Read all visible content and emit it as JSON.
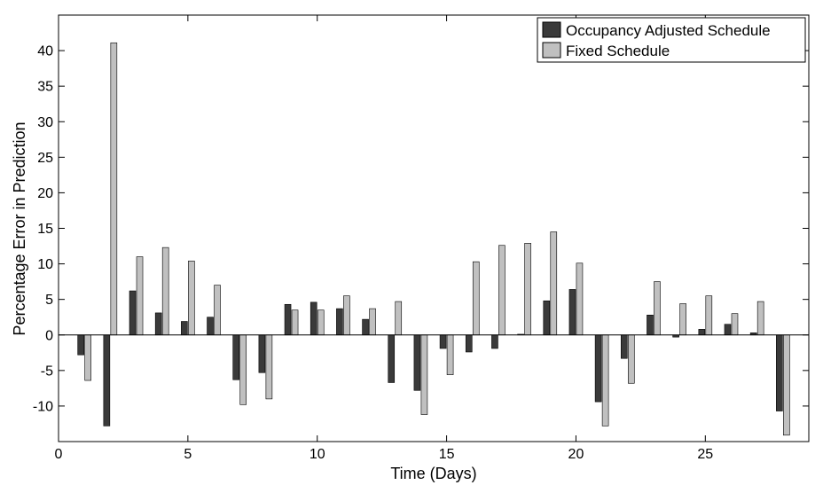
{
  "chart_data": {
    "type": "bar",
    "xlabel": "Time (Days)",
    "ylabel": "Percentage Error in Prediction",
    "xlim": [
      0,
      29
    ],
    "ylim": [
      -15,
      45
    ],
    "xticks": [
      0,
      5,
      10,
      15,
      20,
      25
    ],
    "yticks": [
      -10,
      -5,
      0,
      5,
      10,
      15,
      20,
      25,
      30,
      35,
      40
    ],
    "grid": false,
    "legend_position": "top-right",
    "x": [
      1,
      2,
      3,
      4,
      5,
      6,
      7,
      8,
      9,
      10,
      11,
      12,
      13,
      14,
      15,
      16,
      17,
      18,
      19,
      20,
      21,
      22,
      23,
      24,
      25,
      26,
      27,
      28
    ],
    "series": [
      {
        "name": "Occupancy Adjusted Schedule",
        "color": "#3a3a3a",
        "values": [
          -2.8,
          -12.8,
          6.2,
          3.1,
          1.9,
          2.5,
          -6.3,
          -5.3,
          4.3,
          4.6,
          3.7,
          2.2,
          -6.7,
          -7.8,
          -1.9,
          -2.4,
          -1.9,
          0.1,
          4.8,
          6.4,
          -9.4,
          -3.3,
          2.8,
          -0.3,
          0.8,
          1.5,
          0.3,
          -10.7
        ]
      },
      {
        "name": "Fixed Schedule",
        "color": "#c0c0c0",
        "values": [
          -6.4,
          41.1,
          11.0,
          12.3,
          10.4,
          7.0,
          -9.8,
          -9.0,
          3.5,
          3.5,
          5.5,
          3.7,
          4.7,
          -11.2,
          -5.6,
          10.3,
          12.6,
          12.9,
          14.5,
          10.1,
          -12.8,
          -6.8,
          7.5,
          4.4,
          5.5,
          3.0,
          4.7,
          -14.1
        ]
      }
    ]
  }
}
